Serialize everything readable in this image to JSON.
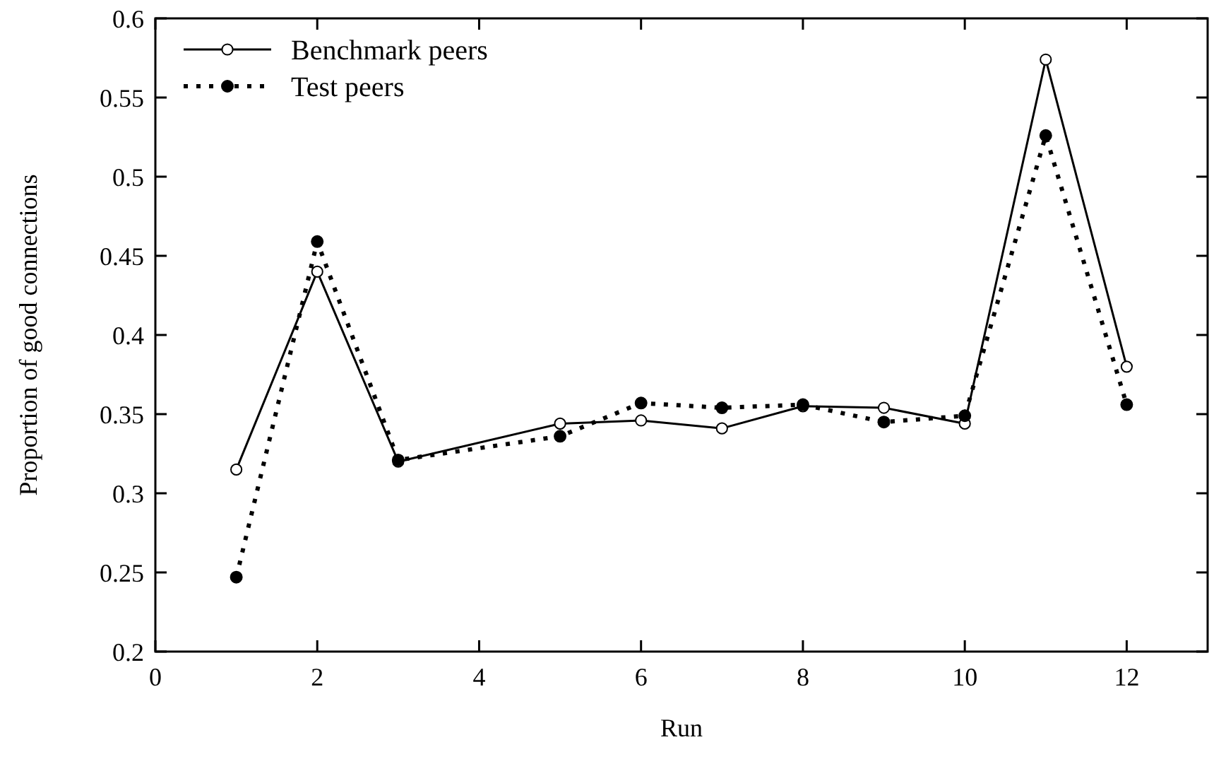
{
  "chart_data": {
    "type": "line",
    "xlabel": "Run",
    "ylabel": "Proportion of good connections",
    "x": [
      1,
      2,
      3,
      5,
      6,
      7,
      8,
      9,
      10,
      11,
      12
    ],
    "xlim": [
      0,
      13
    ],
    "xticks": [
      0,
      2,
      4,
      6,
      8,
      10,
      12
    ],
    "ylim": [
      0.2,
      0.6
    ],
    "yticks": [
      0.2,
      0.25,
      0.3,
      0.35,
      0.4,
      0.45,
      0.5,
      0.55,
      0.6
    ],
    "grid": false,
    "legend": "top left",
    "series": [
      {
        "name": "Benchmark peers",
        "color": "#000000",
        "marker": "circle",
        "line_style": "solid",
        "values": [
          0.315,
          0.44,
          0.32,
          0.344,
          0.346,
          0.341,
          0.355,
          0.354,
          0.344,
          0.574,
          0.38
        ]
      },
      {
        "name": "Test peers",
        "color": "#000000",
        "marker": "circle",
        "line_style": "dotted",
        "values": [
          0.247,
          0.459,
          0.321,
          0.336,
          0.357,
          0.354,
          0.356,
          0.345,
          0.349,
          0.526,
          0.356
        ]
      }
    ]
  }
}
